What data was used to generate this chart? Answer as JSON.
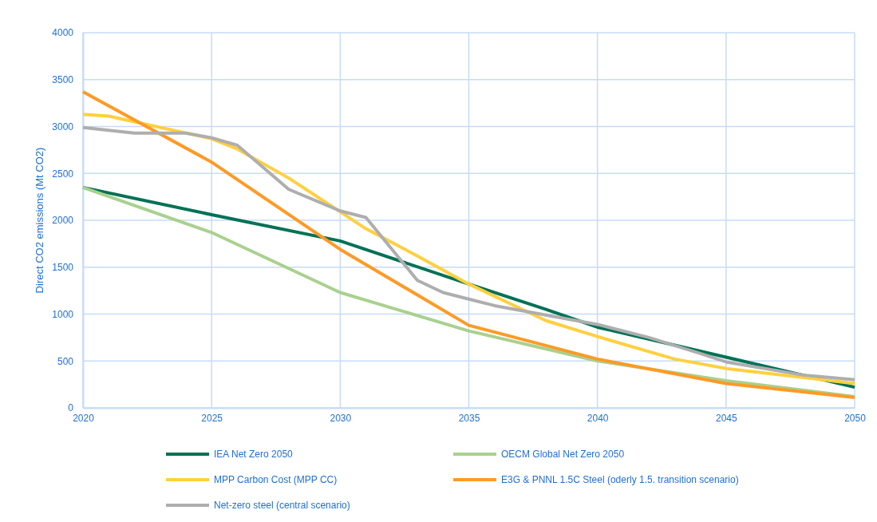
{
  "chart_data": {
    "type": "line",
    "ylabel": "Direct CO2 emissions (Mt CO2)",
    "xlim": [
      2020,
      2050
    ],
    "xticks": [
      2020,
      2025,
      2030,
      2035,
      2040,
      2045,
      2050
    ],
    "ylim": [
      0,
      4000
    ],
    "yticks": [
      0,
      500,
      1000,
      1500,
      2000,
      2500,
      3000,
      3500,
      4000
    ],
    "grid": true,
    "legend": "bottom",
    "marker": "none",
    "line_style": "solid",
    "series": [
      {
        "name": "IEA Net Zero 2050",
        "color": "#007155",
        "x": [
          2020,
          2025,
          2030,
          2035,
          2038,
          2040,
          2045,
          2050
        ],
        "values": [
          2350,
          2060,
          1780,
          1320,
          1050,
          860,
          540,
          220
        ]
      },
      {
        "name": "OECM Global Net Zero 2050",
        "color": "#a9d18e",
        "x": [
          2020,
          2025,
          2030,
          2035,
          2040,
          2045,
          2050
        ],
        "values": [
          2350,
          1870,
          1230,
          820,
          500,
          290,
          120
        ]
      },
      {
        "name": "MPP Carbon Cost (MPP CC)",
        "color": "#ffd03f",
        "x": [
          2020,
          2021,
          2025,
          2026,
          2028,
          2030,
          2031,
          2033,
          2035,
          2038,
          2040,
          2043,
          2045,
          2050
        ],
        "values": [
          3130,
          3110,
          2870,
          2760,
          2450,
          2090,
          1910,
          1620,
          1320,
          930,
          760,
          520,
          420,
          260
        ]
      },
      {
        "name": "E3G & PNNL 1.5C Steel (oderly 1.5. transition scenario)",
        "color": "#ff9a25",
        "x": [
          2020,
          2025,
          2030,
          2035,
          2040,
          2045,
          2050
        ],
        "values": [
          3370,
          2620,
          1690,
          880,
          520,
          260,
          110
        ]
      },
      {
        "name": "Net-zero steel (central scenario)",
        "color": "#aeaeae",
        "x": [
          2020,
          2022,
          2024,
          2025,
          2026,
          2028,
          2030,
          2031,
          2033,
          2034,
          2035,
          2036,
          2038,
          2040,
          2042,
          2044,
          2045,
          2048,
          2050
        ],
        "values": [
          2990,
          2930,
          2930,
          2880,
          2800,
          2330,
          2100,
          2030,
          1360,
          1230,
          1160,
          1090,
          990,
          890,
          750,
          580,
          490,
          350,
          300
        ]
      }
    ]
  }
}
